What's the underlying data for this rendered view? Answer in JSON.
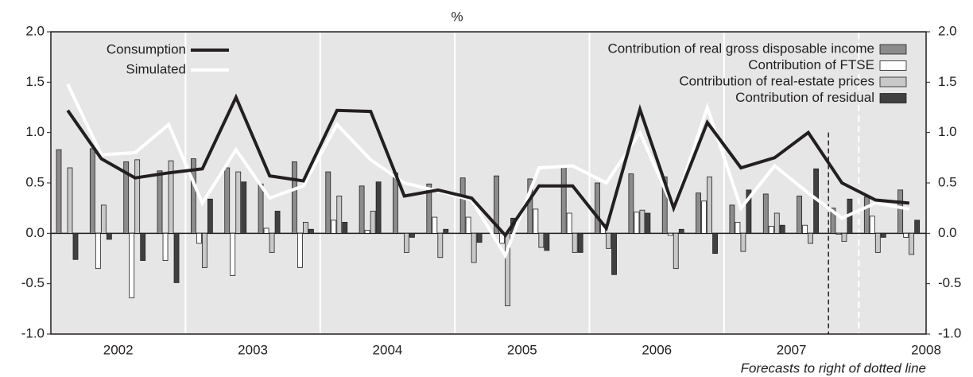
{
  "chart_data": {
    "type": "bar",
    "title": "%",
    "categories": [
      null,
      null,
      null,
      null,
      null,
      null,
      null,
      null,
      null,
      null,
      null,
      null,
      null,
      null,
      null,
      null,
      null,
      null,
      null,
      null,
      null,
      null,
      null,
      null,
      null,
      null
    ],
    "x_group_labels": [
      "2002",
      "2003",
      "2004",
      "2005",
      "2006",
      "2007",
      "2008"
    ],
    "note": "Forecasts to right of dotted line",
    "ylim": [
      -1,
      2
    ],
    "yticks": [
      {
        "value": -1,
        "label": "-1.0"
      },
      {
        "value": -0.5,
        "label": "-0.5"
      },
      {
        "value": 0,
        "label": "0.0"
      },
      {
        "value": 0.5,
        "label": "0.5"
      },
      {
        "value": 1,
        "label": "1.0"
      },
      {
        "value": 1.5,
        "label": "1.5"
      },
      {
        "value": 2,
        "label": "2.0"
      }
    ],
    "grid": true,
    "series": [
      {
        "name": "Contribution of real gross disposable income",
        "type": "bar",
        "color": "#8c8c8c",
        "values": [
          0.83,
          0.84,
          0.71,
          0.62,
          0.74,
          0.65,
          0.49,
          0.71,
          0.61,
          0.47,
          0.6,
          0.49,
          0.55,
          0.57,
          0.54,
          0.66,
          0.5,
          0.59,
          0.56,
          0.4,
          0.28,
          0.39,
          0.37,
          0.25,
          0.36,
          0.43
        ]
      },
      {
        "name": "Contribution of FTSE",
        "type": "bar",
        "color": "#ffffff",
        "values": [
          0,
          -0.35,
          -0.64,
          -0.27,
          -0.1,
          -0.42,
          0.05,
          -0.34,
          0.13,
          0.03,
          0,
          0.16,
          0.16,
          -0.1,
          0.24,
          0.2,
          0.09,
          0.21,
          -0.02,
          0.32,
          0.11,
          0.07,
          0.08,
          -0.01,
          0.17,
          -0.04
        ]
      },
      {
        "name": "Contribution of real-estate prices",
        "type": "bar",
        "color": "#c8c8c8",
        "values": [
          0.65,
          0.28,
          0.73,
          0.72,
          -0.34,
          0.61,
          -0.19,
          0.11,
          0.37,
          0.22,
          -0.19,
          -0.24,
          -0.29,
          -0.72,
          -0.14,
          -0.19,
          -0.15,
          0.23,
          -0.35,
          0.56,
          -0.18,
          0.2,
          -0.1,
          -0.08,
          -0.19,
          -0.21
        ]
      },
      {
        "name": "Contribution of residual",
        "type": "bar",
        "color": "#404040",
        "values": [
          -0.26,
          -0.06,
          -0.27,
          -0.49,
          0.34,
          0.51,
          0.22,
          0.04,
          0.11,
          0.51,
          -0.04,
          0.04,
          -0.09,
          0.15,
          -0.17,
          -0.19,
          -0.41,
          0.2,
          0.04,
          -0.2,
          0.43,
          0.08,
          0.64,
          0.34,
          -0.04,
          0.13
        ]
      },
      {
        "name": "Consumption",
        "type": "line",
        "color": "#231f20",
        "values": [
          1.22,
          0.74,
          0.55,
          0.6,
          0.64,
          1.35,
          0.57,
          0.52,
          1.22,
          1.21,
          0.37,
          0.43,
          0.35,
          -0.02,
          0.47,
          0.47,
          0.05,
          1.23,
          0.25,
          1.1,
          0.65,
          0.75,
          1.0,
          0.5,
          0.33,
          0.3
        ]
      },
      {
        "name": "Simulated",
        "type": "line",
        "color": "#ffffff",
        "values": [
          1.48,
          0.78,
          0.8,
          1.08,
          0.3,
          0.83,
          0.35,
          0.47,
          1.08,
          0.73,
          0.5,
          0.42,
          0.33,
          -0.22,
          0.65,
          0.67,
          0.5,
          1.0,
          0.24,
          1.25,
          0.25,
          0.67,
          0.4,
          0.15,
          0.3,
          0.24
        ]
      }
    ]
  }
}
